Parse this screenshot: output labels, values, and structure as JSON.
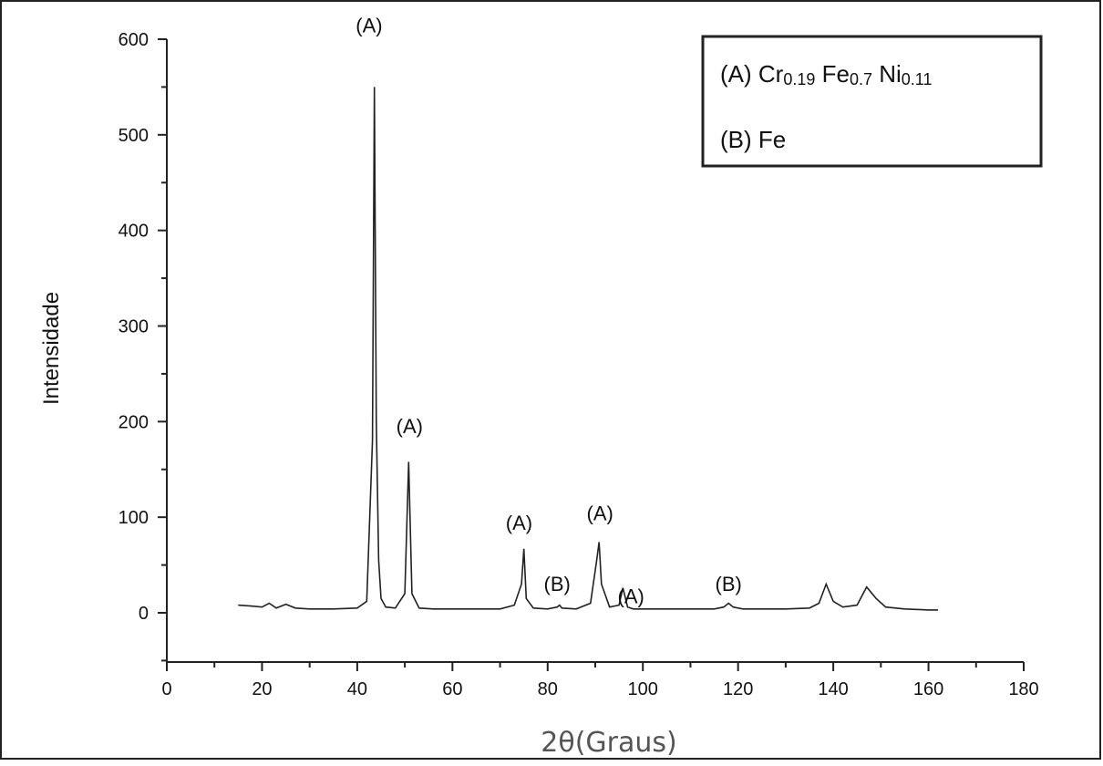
{
  "chart_data": {
    "type": "line",
    "title": "",
    "xlabel": "2θ(Graus)",
    "ylabel": "Intensidade",
    "xlim": [
      0,
      180
    ],
    "ylim": [
      -50,
      600
    ],
    "x_ticks": [
      "0",
      "20",
      "40",
      "60",
      "80",
      "100",
      "120",
      "140",
      "160",
      "180"
    ],
    "y_ticks": [
      "0",
      "100",
      "200",
      "300",
      "400",
      "500",
      "600"
    ],
    "grid": false,
    "line_color": "#222222",
    "series": [
      {
        "x": [
          15,
          18,
          20,
          21.5,
          23,
          25,
          27,
          30,
          35,
          40,
          42,
          43.2,
          43.6,
          44,
          44.5,
          45,
          46,
          48,
          50,
          50.8,
          51.5,
          53,
          56,
          60,
          65,
          70,
          73,
          74.5,
          75,
          75.5,
          77,
          80,
          82,
          82.5,
          83,
          86,
          89,
          90.3,
          90.8,
          91.3,
          93,
          95,
          95.8,
          96.2,
          96.8,
          98,
          102,
          106,
          110,
          115,
          117,
          118,
          119,
          121,
          125,
          130,
          135,
          137,
          138.5,
          140,
          142,
          145,
          147,
          149,
          151,
          155,
          160,
          162
        ],
        "y": [
          8,
          7,
          6,
          10,
          5,
          9,
          5,
          4,
          4,
          5,
          12,
          180,
          550,
          200,
          55,
          15,
          6,
          5,
          20,
          158,
          20,
          5,
          4,
          4,
          4,
          4,
          8,
          30,
          67,
          15,
          5,
          4,
          6,
          8,
          5,
          4,
          10,
          55,
          74,
          30,
          6,
          8,
          26,
          18,
          6,
          4,
          4,
          4,
          4,
          4,
          6,
          10,
          6,
          4,
          4,
          4,
          5,
          10,
          30,
          12,
          6,
          8,
          27,
          15,
          6,
          4,
          3,
          3
        ]
      }
    ],
    "peak_annotations": [
      {
        "label": "(A)",
        "x": 42.5,
        "y": 607
      },
      {
        "label": "(A)",
        "x": 51,
        "y": 188
      },
      {
        "label": "(A)",
        "x": 74,
        "y": 87
      },
      {
        "label": "(B)",
        "x": 82,
        "y": 23
      },
      {
        "label": "(A)",
        "x": 91,
        "y": 97
      },
      {
        "label": "(A)",
        "x": 97.5,
        "y": 10
      },
      {
        "label": "(B)",
        "x": 118,
        "y": 23
      }
    ]
  },
  "legend": {
    "entry_a_prefix": "(A) Cr",
    "entry_a_sub1": "0.19",
    "entry_a_mid1": " Fe",
    "entry_a_sub2": "0.7",
    "entry_a_mid2": " Ni",
    "entry_a_sub3": "0.11",
    "entry_b": "(B) Fe",
    "placement": "top-right"
  }
}
